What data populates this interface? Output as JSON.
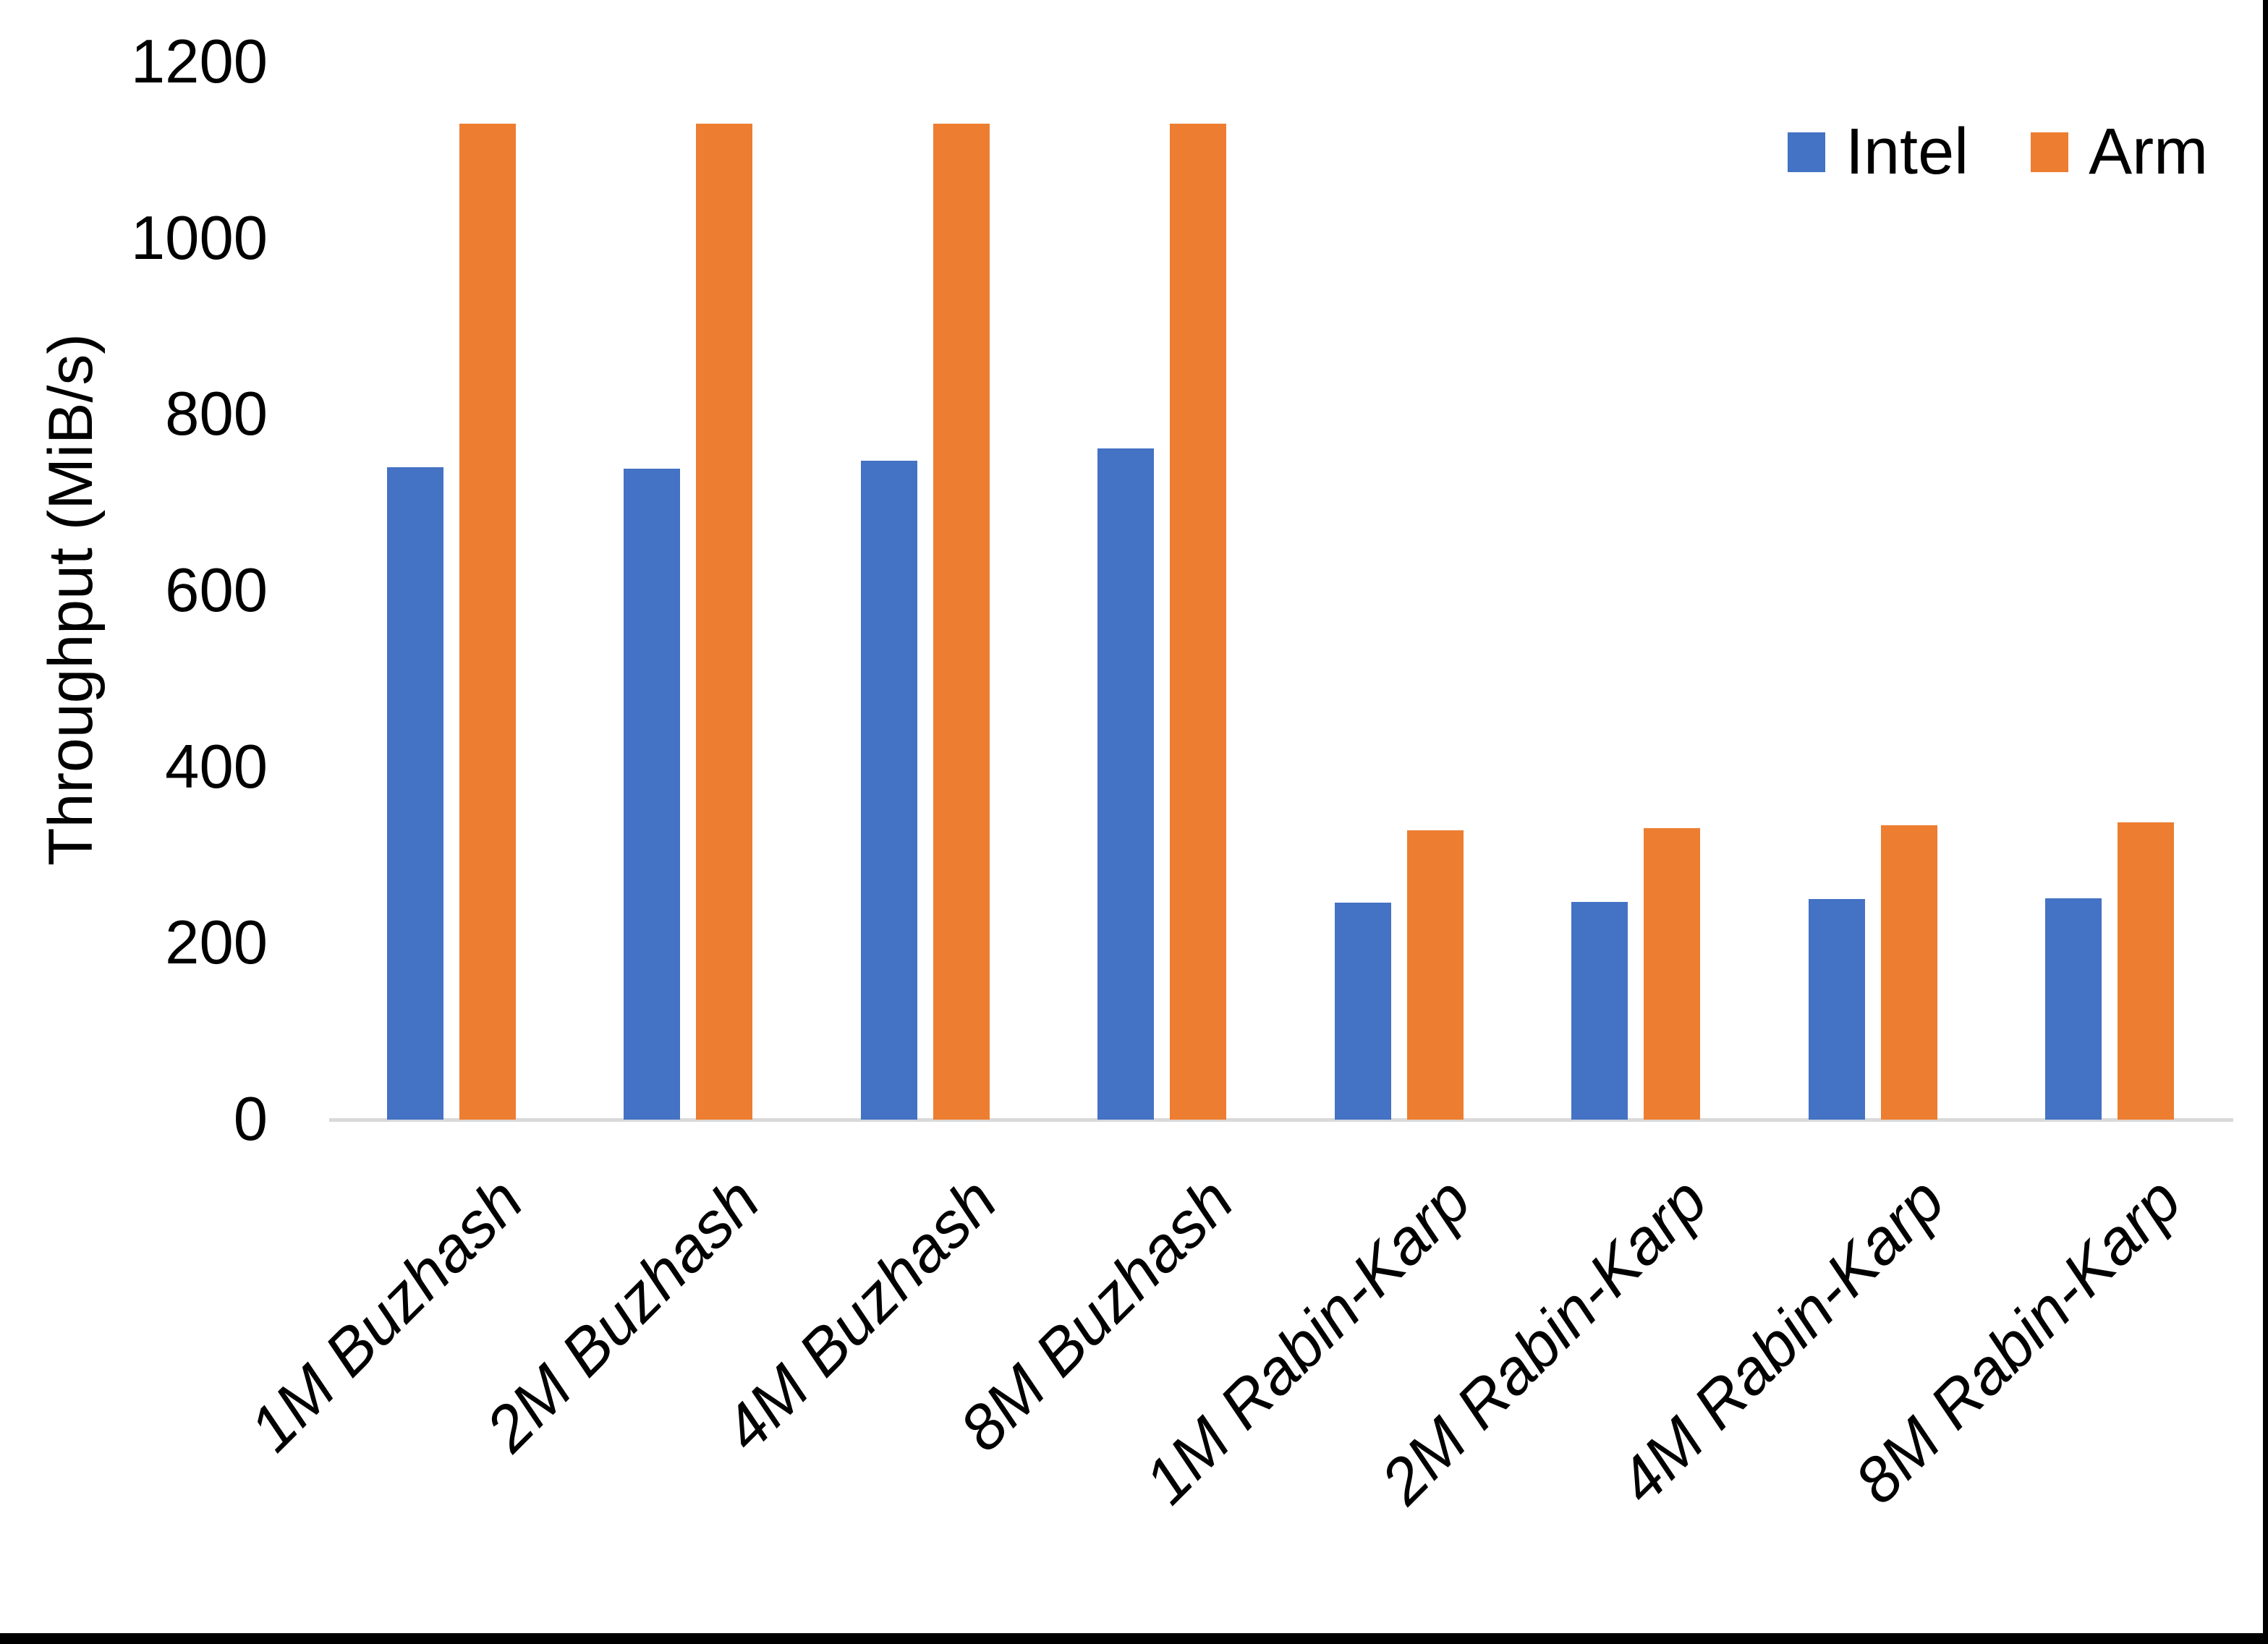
{
  "chart_data": {
    "type": "bar",
    "title": "",
    "xlabel": "",
    "ylabel": "Throughput (MiB/s)",
    "categories": [
      "1M Buzhash",
      "2M Buzhash",
      "4M Buzhash",
      "8M Buzhash",
      "1M Rabin-Karp",
      "2M Rabin-Karp",
      "4M Rabin-Karp",
      "8M Rabin-Karp"
    ],
    "series": [
      {
        "name": "Intel",
        "color": "#4472C4",
        "values": [
          740,
          739,
          748,
          762,
          246,
          247,
          250,
          251
        ]
      },
      {
        "name": "Arm",
        "color": "#ED7D31",
        "values": [
          1130,
          1130,
          1130,
          1130,
          328,
          331,
          334,
          337
        ]
      }
    ],
    "ylim": [
      0,
      1200
    ],
    "yticks": [
      0,
      200,
      400,
      600,
      800,
      1000,
      1200
    ],
    "grid": false,
    "legend_position": "top-right"
  },
  "colors": {
    "axis_line": "#d9d9d9",
    "text": "#000000",
    "background": "#ffffff",
    "window_edge": "#000000"
  }
}
